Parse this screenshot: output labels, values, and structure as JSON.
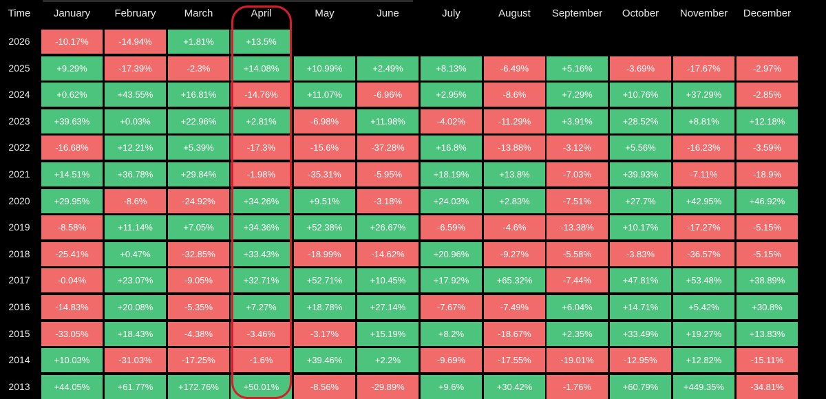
{
  "header": {
    "time_label": "Time",
    "months": [
      "January",
      "February",
      "March",
      "April",
      "May",
      "June",
      "July",
      "August",
      "September",
      "October",
      "November",
      "December"
    ]
  },
  "highlighted_month": "April",
  "colors": {
    "positive": "#4cc47d",
    "negative": "#f26b6b",
    "highlight": "#d21f2b",
    "background": "#000000"
  },
  "rows": [
    {
      "year": "2026",
      "values": [
        "-10.17%",
        "-14.94%",
        "+1.81%",
        "+13.5%",
        "",
        "",
        "",
        "",
        "",
        "",
        "",
        ""
      ]
    },
    {
      "year": "2025",
      "values": [
        "+9.29%",
        "-17.39%",
        "-2.3%",
        "+14.08%",
        "+10.99%",
        "+2.49%",
        "+8.13%",
        "-6.49%",
        "+5.16%",
        "-3.69%",
        "-17.67%",
        "-2.97%"
      ]
    },
    {
      "year": "2024",
      "values": [
        "+0.62%",
        "+43.55%",
        "+16.81%",
        "-14.76%",
        "+11.07%",
        "-6.96%",
        "+2.95%",
        "-8.6%",
        "+7.29%",
        "+10.76%",
        "+37.29%",
        "-2.85%"
      ]
    },
    {
      "year": "2023",
      "values": [
        "+39.63%",
        "+0.03%",
        "+22.96%",
        "+2.81%",
        "-6.98%",
        "+11.98%",
        "-4.02%",
        "-11.29%",
        "+3.91%",
        "+28.52%",
        "+8.81%",
        "+12.18%"
      ]
    },
    {
      "year": "2022",
      "values": [
        "-16.68%",
        "+12.21%",
        "+5.39%",
        "-17.3%",
        "-15.6%",
        "-37.28%",
        "+16.8%",
        "-13.88%",
        "-3.12%",
        "+5.56%",
        "-16.23%",
        "-3.59%"
      ]
    },
    {
      "year": "2021",
      "values": [
        "+14.51%",
        "+36.78%",
        "+29.84%",
        "-1.98%",
        "-35.31%",
        "-5.95%",
        "+18.19%",
        "+13.8%",
        "-7.03%",
        "+39.93%",
        "-7.11%",
        "-18.9%"
      ]
    },
    {
      "year": "2020",
      "values": [
        "+29.95%",
        "-8.6%",
        "-24.92%",
        "+34.26%",
        "+9.51%",
        "-3.18%",
        "+24.03%",
        "+2.83%",
        "-7.51%",
        "+27.7%",
        "+42.95%",
        "+46.92%"
      ]
    },
    {
      "year": "2019",
      "values": [
        "-8.58%",
        "+11.14%",
        "+7.05%",
        "+34.36%",
        "+52.38%",
        "+26.67%",
        "-6.59%",
        "-4.6%",
        "-13.38%",
        "+10.17%",
        "-17.27%",
        "-5.15%"
      ]
    },
    {
      "year": "2018",
      "values": [
        "-25.41%",
        "+0.47%",
        "-32.85%",
        "+33.43%",
        "-18.99%",
        "-14.62%",
        "+20.96%",
        "-9.27%",
        "-5.58%",
        "-3.83%",
        "-36.57%",
        "-5.15%"
      ]
    },
    {
      "year": "2017",
      "values": [
        "-0.04%",
        "+23.07%",
        "-9.05%",
        "+32.71%",
        "+52.71%",
        "+10.45%",
        "+17.92%",
        "+65.32%",
        "-7.44%",
        "+47.81%",
        "+53.48%",
        "+38.89%"
      ]
    },
    {
      "year": "2016",
      "values": [
        "-14.83%",
        "+20.08%",
        "-5.35%",
        "+7.27%",
        "+18.78%",
        "+27.14%",
        "-7.67%",
        "-7.49%",
        "+6.04%",
        "+14.71%",
        "+5.42%",
        "+30.8%"
      ]
    },
    {
      "year": "2015",
      "values": [
        "-33.05%",
        "+18.43%",
        "-4.38%",
        "-3.46%",
        "-3.17%",
        "+15.19%",
        "+8.2%",
        "-18.67%",
        "+2.35%",
        "+33.49%",
        "+19.27%",
        "+13.83%"
      ]
    },
    {
      "year": "2014",
      "values": [
        "+10.03%",
        "-31.03%",
        "-17.25%",
        "-1.6%",
        "+39.46%",
        "+2.2%",
        "-9.69%",
        "-17.55%",
        "-19.01%",
        "-12.95%",
        "+12.82%",
        "-15.11%"
      ]
    },
    {
      "year": "2013",
      "values": [
        "+44.05%",
        "+61.77%",
        "+172.76%",
        "+50.01%",
        "-8.56%",
        "-29.89%",
        "+9.6%",
        "+30.42%",
        "-1.76%",
        "+60.79%",
        "+449.35%",
        "-34.81%"
      ]
    }
  ]
}
